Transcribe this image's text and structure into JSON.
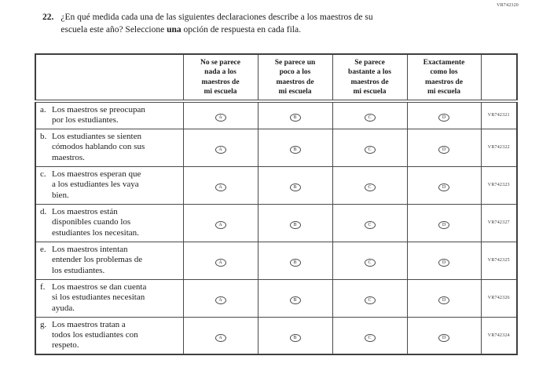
{
  "page": {
    "code_top_right": "VR742320"
  },
  "question": {
    "number": "22.",
    "line1": "¿En qué medida cada una de las siguientes declaraciones describe a los maestros de su",
    "line2_part1": "escuela este año? Seleccione ",
    "line2_bold": "una",
    "line2_part2": " opción de respuesta en cada fila."
  },
  "table": {
    "column_headers": [
      "No se parece\nnada a los\nmaestros de\nmi escuela",
      "Se parece un\npoco a los\nmaestros de\nmi escuela",
      "Se parece\nbastante a los\nmaestros de\nmi escuela",
      "Exactamente\ncomo los\nmaestros de\nmi escuela"
    ],
    "options": [
      "A",
      "B",
      "C",
      "D"
    ],
    "rows": [
      {
        "letter": "a.",
        "text": "Los maestros se preocupan\npor los estudiantes.",
        "code": "VR742321"
      },
      {
        "letter": "b.",
        "text": "Los estudiantes se sienten\ncómodos hablando con sus\nmaestros.",
        "code": "VR742322"
      },
      {
        "letter": "c.",
        "text": "Los maestros esperan que\na los estudiantes les vaya\nbien.",
        "code": "VR742323"
      },
      {
        "letter": "d.",
        "text": "Los maestros están\ndisponibles cuando los\nestudiantes los necesitan.",
        "code": "VR742327"
      },
      {
        "letter": "e.",
        "text": "Los maestros intentan\nentender los problemas de\nlos estudiantes.",
        "code": "VR742325"
      },
      {
        "letter": "f.",
        "text": "Los maestros se dan cuenta\nsi los estudiantes necesitan\nayuda.",
        "code": "VR742326"
      },
      {
        "letter": "g.",
        "text": "Los maestros tratan a\ntodos los estudiantes con\nrespeto.",
        "code": "VR742324"
      }
    ]
  }
}
